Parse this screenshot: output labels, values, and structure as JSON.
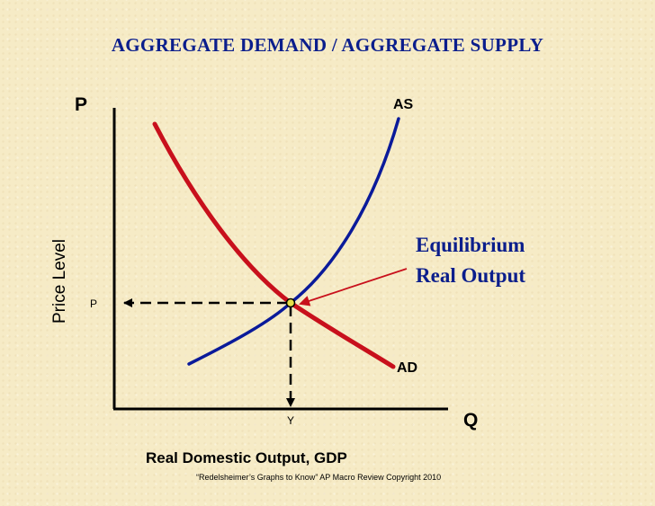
{
  "title": "AGGREGATE DEMAND / AGGREGATE SUPPLY",
  "axes": {
    "y_axis_letter": "P",
    "x_axis_letter": "Q",
    "y_label": "Price Level",
    "x_label": "Real Domestic Output, GDP"
  },
  "curves": {
    "supply_label": "AS",
    "demand_label": "AD"
  },
  "equilibrium": {
    "price_label": "P",
    "output_label": "Y",
    "annotation_line1": "Equilibrium",
    "annotation_line2": "Real Output"
  },
  "footer": "“Redelsheimer’s Graphs to Know”  AP Macro Review Copyright 2010",
  "colors": {
    "title": "#0b1e8c",
    "supply_curve": "#0a1a9a",
    "demand_curve": "#c8101c",
    "arrow": "#c8101c",
    "axes": "#000000",
    "equilibrium_dot": "#e6e04a"
  }
}
